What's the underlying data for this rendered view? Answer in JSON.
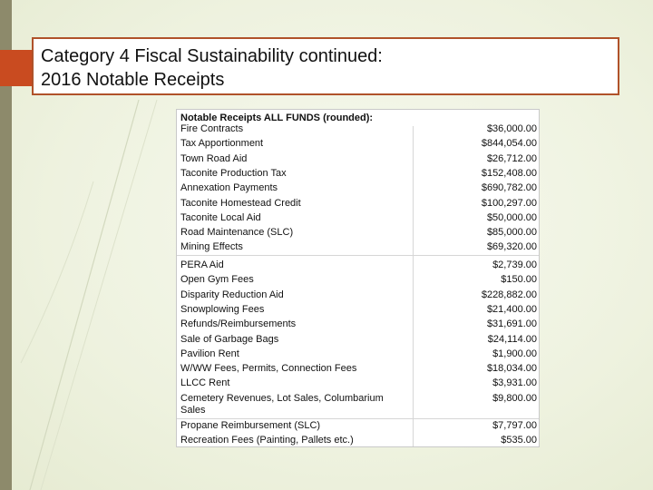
{
  "title": {
    "line1": "Category 4 Fiscal Sustainability continued:",
    "line2": "2016 Notable Receipts"
  },
  "table": {
    "header": "Notable Receipts ALL FUNDS (rounded):",
    "group1": [
      {
        "label": "Fire Contracts",
        "value": "$36,000.00"
      },
      {
        "label": "Tax Apportionment",
        "value": "$844,054.00"
      },
      {
        "label": "Town Road Aid",
        "value": "$26,712.00"
      },
      {
        "label": "Taconite Production Tax",
        "value": "$152,408.00"
      },
      {
        "label": "Annexation Payments",
        "value": "$690,782.00"
      },
      {
        "label": "Taconite Homestead Credit",
        "value": "$100,297.00"
      },
      {
        "label": "Taconite Local Aid",
        "value": "$50,000.00"
      },
      {
        "label": "Road Maintenance (SLC)",
        "value": "$85,000.00"
      },
      {
        "label": "Mining Effects",
        "value": "$69,320.00"
      }
    ],
    "group2": [
      {
        "label": "PERA Aid",
        "value": "$2,739.00"
      },
      {
        "label": "Open Gym Fees",
        "value": "$150.00"
      },
      {
        "label": "Disparity Reduction Aid",
        "value": "$228,882.00"
      },
      {
        "label": "Snowplowing Fees",
        "value": "$21,400.00"
      },
      {
        "label": "Refunds/Reimbursements",
        "value": "$31,691.00"
      },
      {
        "label": "Sale of Garbage Bags",
        "value": "$24,114.00"
      },
      {
        "label": "Pavilion Rent",
        "value": "$1,900.00"
      },
      {
        "label": "W/WW Fees, Permits, Connection Fees",
        "value": "$18,034.00"
      },
      {
        "label": "LLCC Rent",
        "value": "$3,931.00"
      },
      {
        "label": "Cemetery Revenues, Lot Sales, Columbarium Sales",
        "value": "$9,800.00"
      }
    ],
    "group3": [
      {
        "label": "Propane Reimbursement (SLC)",
        "value": "$7,797.00"
      },
      {
        "label": "Recreation Fees (Painting, Pallets etc.)",
        "value": "$535.00"
      }
    ]
  }
}
